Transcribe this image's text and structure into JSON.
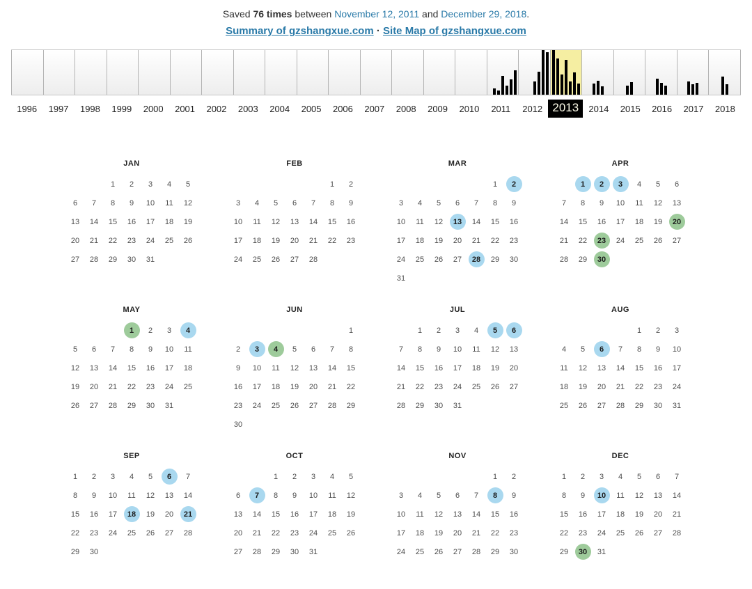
{
  "header": {
    "saved_prefix": "Saved",
    "saved_count": "76 times",
    "between": "between",
    "first_date": "November 12, 2011",
    "and": "and",
    "last_date": "December 29, 2018",
    "period": ".",
    "summary_link": "Summary of gzshangxue.com",
    "separator": "·",
    "sitemap_link": "Site Map of gzshangxue.com"
  },
  "colors": {
    "link_color": "#2a7aa8",
    "bar_color": "#000000",
    "selected_highlight": "#f5eea2",
    "selected_label_bg": "#000000",
    "selected_label_text": "#fdfbe8",
    "snapshot_blue": "#a9d8ef",
    "snapshot_green": "#9ecb9b"
  },
  "chart_data": {
    "type": "bar",
    "title": "Captures per year timeline",
    "ylim": [
      0,
      1
    ],
    "selected_year": "2013",
    "years": [
      {
        "label": "1996",
        "bars": [],
        "align": "center",
        "selected": false
      },
      {
        "label": "1997",
        "bars": [],
        "align": "center",
        "selected": false
      },
      {
        "label": "1998",
        "bars": [],
        "align": "center",
        "selected": false
      },
      {
        "label": "1999",
        "bars": [],
        "align": "center",
        "selected": false
      },
      {
        "label": "2000",
        "bars": [],
        "align": "center",
        "selected": false
      },
      {
        "label": "2001",
        "bars": [],
        "align": "center",
        "selected": false
      },
      {
        "label": "2002",
        "bars": [],
        "align": "center",
        "selected": false
      },
      {
        "label": "2003",
        "bars": [],
        "align": "center",
        "selected": false
      },
      {
        "label": "2004",
        "bars": [],
        "align": "center",
        "selected": false
      },
      {
        "label": "2005",
        "bars": [],
        "align": "center",
        "selected": false
      },
      {
        "label": "2006",
        "bars": [],
        "align": "center",
        "selected": false
      },
      {
        "label": "2007",
        "bars": [],
        "align": "center",
        "selected": false
      },
      {
        "label": "2008",
        "bars": [],
        "align": "center",
        "selected": false
      },
      {
        "label": "2009",
        "bars": [],
        "align": "center",
        "selected": false
      },
      {
        "label": "2010",
        "bars": [],
        "align": "center",
        "selected": false
      },
      {
        "label": "2011",
        "bars": [
          0.14,
          0.1,
          0.42,
          0.2,
          0.34,
          0.55
        ],
        "align": "end",
        "selected": false
      },
      {
        "label": "2012",
        "bars": [
          0.3,
          0.52,
          1.0,
          0.95
        ],
        "align": "end",
        "selected": false
      },
      {
        "label": "2013",
        "bars": [
          1.0,
          0.82,
          0.45,
          0.78,
          0.3,
          0.5,
          0.25
        ],
        "align": "start",
        "selected": true
      },
      {
        "label": "2014",
        "bars": [
          0.25,
          0.32,
          0.18
        ],
        "align": "center",
        "selected": false
      },
      {
        "label": "2015",
        "bars": [
          0.2,
          0.28
        ],
        "align": "center",
        "selected": false
      },
      {
        "label": "2016",
        "bars": [
          0.36,
          0.26,
          0.2
        ],
        "align": "center",
        "selected": false
      },
      {
        "label": "2017",
        "bars": [
          0.3,
          0.24,
          0.27
        ],
        "align": "center",
        "selected": false
      },
      {
        "label": "2018",
        "bars": [
          0.4,
          0.24
        ],
        "align": "center",
        "selected": false
      }
    ]
  },
  "calendar": {
    "year": "2013",
    "months": [
      {
        "name": "JAN",
        "weeks": [
          [
            null,
            null,
            1,
            2,
            3,
            4,
            5
          ],
          [
            6,
            7,
            8,
            9,
            10,
            11,
            12
          ],
          [
            13,
            14,
            15,
            16,
            17,
            18,
            19
          ],
          [
            20,
            21,
            22,
            23,
            24,
            25,
            26
          ],
          [
            27,
            28,
            29,
            30,
            31,
            null,
            null
          ]
        ],
        "highlights": {}
      },
      {
        "name": "FEB",
        "weeks": [
          [
            null,
            null,
            null,
            null,
            null,
            1,
            2
          ],
          [
            3,
            4,
            5,
            6,
            7,
            8,
            9
          ],
          [
            10,
            11,
            12,
            13,
            14,
            15,
            16
          ],
          [
            17,
            18,
            19,
            20,
            21,
            22,
            23
          ],
          [
            24,
            25,
            26,
            27,
            28,
            null,
            null
          ]
        ],
        "highlights": {}
      },
      {
        "name": "MAR",
        "weeks": [
          [
            null,
            null,
            null,
            null,
            null,
            1,
            2
          ],
          [
            3,
            4,
            5,
            6,
            7,
            8,
            9
          ],
          [
            10,
            11,
            12,
            13,
            14,
            15,
            16
          ],
          [
            17,
            18,
            19,
            20,
            21,
            22,
            23
          ],
          [
            24,
            25,
            26,
            27,
            28,
            29,
            30
          ],
          [
            31,
            null,
            null,
            null,
            null,
            null,
            null
          ]
        ],
        "highlights": {
          "2": "blue",
          "13": "blue",
          "28": "blue"
        }
      },
      {
        "name": "APR",
        "weeks": [
          [
            null,
            1,
            2,
            3,
            4,
            5,
            6
          ],
          [
            7,
            8,
            9,
            10,
            11,
            12,
            13
          ],
          [
            14,
            15,
            16,
            17,
            18,
            19,
            20
          ],
          [
            21,
            22,
            23,
            24,
            25,
            26,
            27
          ],
          [
            28,
            29,
            30,
            null,
            null,
            null,
            null
          ]
        ],
        "highlights": {
          "1": "blue",
          "2": "blue",
          "3": "blue",
          "20": "green",
          "23": "green",
          "30": "green"
        }
      },
      {
        "name": "MAY",
        "weeks": [
          [
            null,
            null,
            null,
            1,
            2,
            3,
            4
          ],
          [
            5,
            6,
            7,
            8,
            9,
            10,
            11
          ],
          [
            12,
            13,
            14,
            15,
            16,
            17,
            18
          ],
          [
            19,
            20,
            21,
            22,
            23,
            24,
            25
          ],
          [
            26,
            27,
            28,
            29,
            30,
            31,
            null
          ]
        ],
        "highlights": {
          "1": "green",
          "4": "blue"
        }
      },
      {
        "name": "JUN",
        "weeks": [
          [
            null,
            null,
            null,
            null,
            null,
            null,
            1
          ],
          [
            2,
            3,
            4,
            5,
            6,
            7,
            8
          ],
          [
            9,
            10,
            11,
            12,
            13,
            14,
            15
          ],
          [
            16,
            17,
            18,
            19,
            20,
            21,
            22
          ],
          [
            23,
            24,
            25,
            26,
            27,
            28,
            29
          ],
          [
            30,
            null,
            null,
            null,
            null,
            null,
            null
          ]
        ],
        "highlights": {
          "3": "blue",
          "4": "green"
        }
      },
      {
        "name": "JUL",
        "weeks": [
          [
            null,
            1,
            2,
            3,
            4,
            5,
            6
          ],
          [
            7,
            8,
            9,
            10,
            11,
            12,
            13
          ],
          [
            14,
            15,
            16,
            17,
            18,
            19,
            20
          ],
          [
            21,
            22,
            23,
            24,
            25,
            26,
            27
          ],
          [
            28,
            29,
            30,
            31,
            null,
            null,
            null
          ]
        ],
        "highlights": {
          "5": "blue",
          "6": "blue"
        }
      },
      {
        "name": "AUG",
        "weeks": [
          [
            null,
            null,
            null,
            null,
            1,
            2,
            3
          ],
          [
            4,
            5,
            6,
            7,
            8,
            9,
            10
          ],
          [
            11,
            12,
            13,
            14,
            15,
            16,
            17
          ],
          [
            18,
            19,
            20,
            21,
            22,
            23,
            24
          ],
          [
            25,
            26,
            27,
            28,
            29,
            30,
            31
          ]
        ],
        "highlights": {
          "6": "blue"
        }
      },
      {
        "name": "SEP",
        "weeks": [
          [
            1,
            2,
            3,
            4,
            5,
            6,
            7
          ],
          [
            8,
            9,
            10,
            11,
            12,
            13,
            14
          ],
          [
            15,
            16,
            17,
            18,
            19,
            20,
            21
          ],
          [
            22,
            23,
            24,
            25,
            26,
            27,
            28
          ],
          [
            29,
            30,
            null,
            null,
            null,
            null,
            null
          ]
        ],
        "highlights": {
          "6": "blue",
          "18": "blue",
          "21": "blue"
        }
      },
      {
        "name": "OCT",
        "weeks": [
          [
            null,
            null,
            1,
            2,
            3,
            4,
            5
          ],
          [
            6,
            7,
            8,
            9,
            10,
            11,
            12
          ],
          [
            13,
            14,
            15,
            16,
            17,
            18,
            19
          ],
          [
            20,
            21,
            22,
            23,
            24,
            25,
            26
          ],
          [
            27,
            28,
            29,
            30,
            31,
            null,
            null
          ]
        ],
        "highlights": {
          "7": "blue"
        }
      },
      {
        "name": "NOV",
        "weeks": [
          [
            null,
            null,
            null,
            null,
            null,
            1,
            2
          ],
          [
            3,
            4,
            5,
            6,
            7,
            8,
            9
          ],
          [
            10,
            11,
            12,
            13,
            14,
            15,
            16
          ],
          [
            17,
            18,
            19,
            20,
            21,
            22,
            23
          ],
          [
            24,
            25,
            26,
            27,
            28,
            29,
            30
          ]
        ],
        "highlights": {
          "8": "blue"
        }
      },
      {
        "name": "DEC",
        "weeks": [
          [
            1,
            2,
            3,
            4,
            5,
            6,
            7
          ],
          [
            8,
            9,
            10,
            11,
            12,
            13,
            14
          ],
          [
            15,
            16,
            17,
            18,
            19,
            20,
            21
          ],
          [
            22,
            23,
            24,
            25,
            26,
            27,
            28
          ],
          [
            29,
            30,
            31,
            null,
            null,
            null,
            null
          ]
        ],
        "highlights": {
          "10": "blue",
          "30": "green"
        }
      }
    ]
  }
}
